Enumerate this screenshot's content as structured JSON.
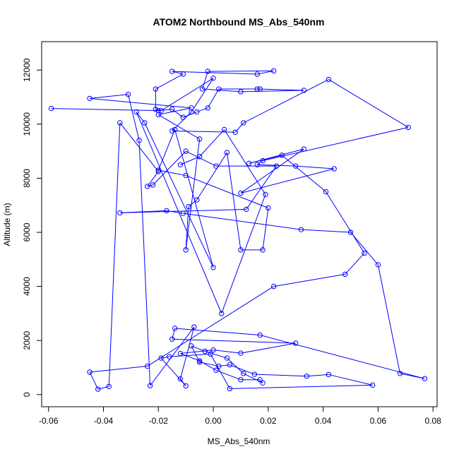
{
  "chart_data": {
    "type": "scatter",
    "title": "ATOM2 Northbound MS_Abs_540nm",
    "xlabel": "MS_Abs_540nm",
    "ylabel": "Altitude (m)",
    "xlim": [
      -0.0625,
      0.0815
    ],
    "ylim": [
      -450,
      13050
    ],
    "xticks": [
      -0.06,
      -0.04,
      -0.02,
      0.0,
      0.02,
      0.04,
      0.06,
      0.08
    ],
    "xtick_labels": [
      "-0.06",
      "-0.04",
      "-0.02",
      "0.00",
      "0.02",
      "0.04",
      "0.06",
      "0.08"
    ],
    "yticks": [
      0,
      2000,
      4000,
      6000,
      8000,
      10000,
      12000
    ],
    "ytick_labels": [
      "0",
      "2000",
      "4000",
      "6000",
      "8000",
      "10000",
      "12000"
    ],
    "grid": false,
    "legend": "none",
    "series_color": "#0000ff",
    "marker": "open-circle",
    "connected": true,
    "points": [
      [
        -0.059,
        10580
      ],
      [
        -0.02,
        10500
      ],
      [
        -0.015,
        10550
      ],
      [
        -0.011,
        10250
      ],
      [
        -0.006,
        10450
      ],
      [
        -0.002,
        10600
      ],
      [
        0.002,
        11300
      ],
      [
        0.017,
        11300
      ],
      [
        0.016,
        11300
      ],
      [
        0.033,
        11250
      ],
      [
        0.01,
        11200
      ],
      [
        -0.004,
        11300
      ],
      [
        -0.002,
        11950
      ],
      [
        0.022,
        11970
      ],
      [
        0.016,
        11850
      ],
      [
        -0.015,
        11950
      ],
      [
        -0.011,
        11850
      ],
      [
        -0.021,
        11300
      ],
      [
        -0.021,
        10550
      ],
      [
        -0.019,
        10500
      ],
      [
        0.0,
        11700
      ],
      [
        -0.008,
        10450
      ],
      [
        -0.015,
        9750
      ],
      [
        0.008,
        9700
      ],
      [
        0.011,
        10050
      ],
      [
        0.042,
        11650
      ],
      [
        0.071,
        9880
      ],
      [
        0.018,
        8650
      ],
      [
        0.016,
        8500
      ],
      [
        0.03,
        8450
      ],
      [
        0.044,
        8350
      ],
      [
        0.01,
        7450
      ],
      [
        0.033,
        9080
      ],
      [
        0.013,
        8550
      ],
      [
        0.025,
        8850
      ],
      [
        0.041,
        7500
      ],
      [
        0.055,
        5230
      ],
      [
        0.048,
        4450
      ],
      [
        0.022,
        4000
      ],
      [
        -0.024,
        1050
      ],
      [
        -0.045,
        830
      ],
      [
        -0.042,
        200
      ],
      [
        -0.038,
        300
      ],
      [
        -0.034,
        10050
      ],
      [
        -0.02,
        8250
      ],
      [
        -0.024,
        7700
      ],
      [
        -0.022,
        7750
      ],
      [
        -0.01,
        9000
      ],
      [
        0.001,
        8450
      ],
      [
        0.023,
        8450
      ],
      [
        0.012,
        6850
      ],
      [
        -0.034,
        6720
      ],
      [
        -0.017,
        6800
      ],
      [
        -0.011,
        6700
      ],
      [
        0.032,
        6100
      ],
      [
        0.05,
        6000
      ],
      [
        0.06,
        4800
      ],
      [
        0.068,
        780
      ],
      [
        0.077,
        590
      ],
      [
        0.017,
        2200
      ],
      [
        -0.014,
        2450
      ],
      [
        -0.015,
        2050
      ],
      [
        0.03,
        1900
      ],
      [
        0.01,
        1530
      ],
      [
        0.0,
        1650
      ],
      [
        -0.012,
        1520
      ],
      [
        -0.005,
        1250
      ],
      [
        0.001,
        900
      ],
      [
        0.01,
        550
      ],
      [
        0.017,
        550
      ],
      [
        0.018,
        430
      ],
      [
        0.011,
        780
      ],
      [
        0.005,
        1350
      ],
      [
        -0.003,
        1600
      ],
      [
        -0.008,
        1800
      ],
      [
        -0.005,
        1200
      ],
      [
        0.002,
        1050
      ],
      [
        0.006,
        1100
      ],
      [
        0.015,
        750
      ],
      [
        0.034,
        680
      ],
      [
        0.042,
        740
      ],
      [
        0.058,
        350
      ],
      [
        0.006,
        220
      ],
      [
        -0.001,
        1500
      ],
      [
        -0.016,
        1400
      ],
      [
        -0.019,
        1350
      ],
      [
        -0.01,
        320
      ],
      [
        -0.012,
        580
      ],
      [
        -0.007,
        2500
      ],
      [
        -0.023,
        330
      ],
      [
        -0.027,
        9400
      ],
      [
        -0.031,
        11100
      ],
      [
        -0.045,
        10950
      ],
      [
        -0.008,
        10600
      ],
      [
        -0.02,
        10350
      ],
      [
        -0.005,
        9450
      ],
      [
        -0.01,
        5350
      ],
      [
        -0.009,
        6950
      ],
      [
        -0.006,
        7200
      ],
      [
        0.005,
        8950
      ],
      [
        0.01,
        5350
      ],
      [
        0.018,
        5350
      ],
      [
        0.02,
        6900
      ],
      [
        -0.01,
        8100
      ],
      [
        -0.02,
        8300
      ],
      [
        -0.014,
        9800
      ],
      [
        0.0,
        4700
      ],
      [
        -0.025,
        10050
      ],
      [
        -0.028,
        10450
      ],
      [
        0.003,
        3000
      ],
      [
        0.019,
        7400
      ],
      [
        0.004,
        9800
      ],
      [
        -0.005,
        8800
      ],
      [
        -0.012,
        8500
      ]
    ]
  }
}
